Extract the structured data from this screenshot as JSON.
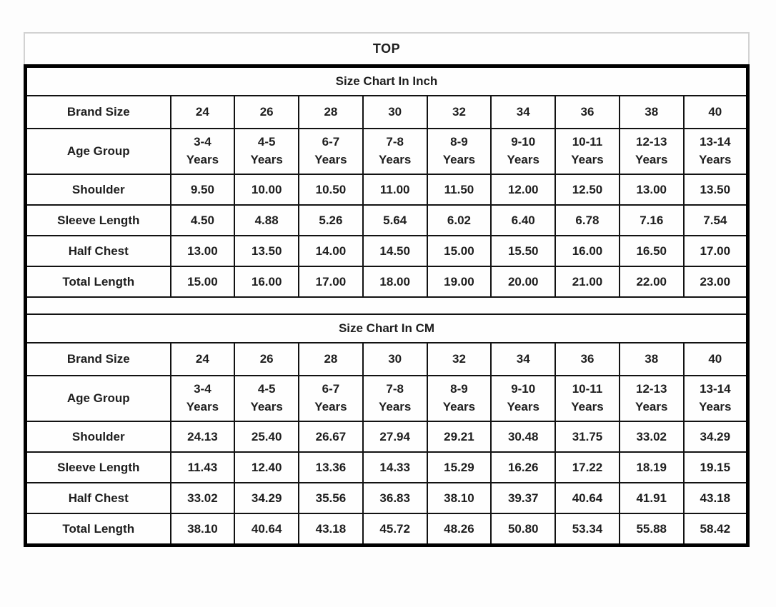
{
  "title": "TOP",
  "colors": {
    "outer_border": "#000000",
    "inner_border": "#121212",
    "title_border": "#d2d2d2",
    "text": "#1e1e1e",
    "background": "#fdfdfd"
  },
  "sections": [
    {
      "title": "Size Chart In Inch",
      "brand_row_label": "Brand Size",
      "brand_sizes": [
        "24",
        "26",
        "28",
        "30",
        "32",
        "34",
        "36",
        "38",
        "40"
      ],
      "age_row_label": "Age Group",
      "age_groups": [
        "3-4",
        "4-5",
        "6-7",
        "7-8",
        "8-9",
        "9-10",
        "10-11",
        "12-13",
        "13-14"
      ],
      "age_suffix": "Years",
      "rows": [
        {
          "label": "Shoulder",
          "values": [
            "9.50",
            "10.00",
            "10.50",
            "11.00",
            "11.50",
            "12.00",
            "12.50",
            "13.00",
            "13.50"
          ]
        },
        {
          "label": "Sleeve Length",
          "values": [
            "4.50",
            "4.88",
            "5.26",
            "5.64",
            "6.02",
            "6.40",
            "6.78",
            "7.16",
            "7.54"
          ]
        },
        {
          "label": "Half Chest",
          "values": [
            "13.00",
            "13.50",
            "14.00",
            "14.50",
            "15.00",
            "15.50",
            "16.00",
            "16.50",
            "17.00"
          ]
        },
        {
          "label": "Total Length",
          "values": [
            "15.00",
            "16.00",
            "17.00",
            "18.00",
            "19.00",
            "20.00",
            "21.00",
            "22.00",
            "23.00"
          ]
        }
      ]
    },
    {
      "title": "Size Chart In CM",
      "brand_row_label": "Brand Size",
      "brand_sizes": [
        "24",
        "26",
        "28",
        "30",
        "32",
        "34",
        "36",
        "38",
        "40"
      ],
      "age_row_label": "Age Group",
      "age_groups": [
        "3-4",
        "4-5",
        "6-7",
        "7-8",
        "8-9",
        "9-10",
        "10-11",
        "12-13",
        "13-14"
      ],
      "age_suffix": "Years",
      "rows": [
        {
          "label": "Shoulder",
          "values": [
            "24.13",
            "25.40",
            "26.67",
            "27.94",
            "29.21",
            "30.48",
            "31.75",
            "33.02",
            "34.29"
          ]
        },
        {
          "label": "Sleeve Length",
          "values": [
            "11.43",
            "12.40",
            "13.36",
            "14.33",
            "15.29",
            "16.26",
            "17.22",
            "18.19",
            "19.15"
          ]
        },
        {
          "label": "Half Chest",
          "values": [
            "33.02",
            "34.29",
            "35.56",
            "36.83",
            "38.10",
            "39.37",
            "40.64",
            "41.91",
            "43.18"
          ]
        },
        {
          "label": "Total Length",
          "values": [
            "38.10",
            "40.64",
            "43.18",
            "45.72",
            "48.26",
            "50.80",
            "53.34",
            "55.88",
            "58.42"
          ]
        }
      ]
    }
  ]
}
